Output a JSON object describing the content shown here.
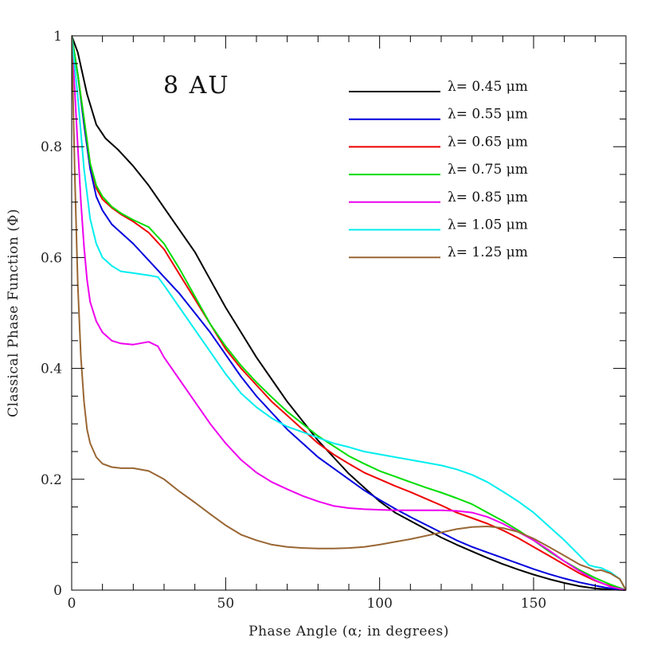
{
  "chart_data": {
    "type": "line",
    "title": "",
    "annotation": "8 AU",
    "xlabel": "Phase Angle (α; in degrees)",
    "ylabel": "Classical Phase Function (Φ)",
    "xlim": [
      0,
      180
    ],
    "ylim": [
      0,
      1
    ],
    "x_ticks": [
      0,
      50,
      100,
      150
    ],
    "x_tick_labels": [
      "0",
      "50",
      "100",
      "150"
    ],
    "y_ticks": [
      0,
      0.2,
      0.4,
      0.6,
      0.8,
      1
    ],
    "y_tick_labels": [
      "0",
      "0.2",
      "0.4",
      "0.6",
      "0.8",
      "1"
    ],
    "grid": false,
    "legend_position": "top-right",
    "series": [
      {
        "name": "λ= 0.45 μm",
        "color": "#000000",
        "points": [
          [
            0,
            1
          ],
          [
            2,
            0.97
          ],
          [
            5,
            0.895
          ],
          [
            8,
            0.84
          ],
          [
            11,
            0.815
          ],
          [
            15,
            0.795
          ],
          [
            20,
            0.765
          ],
          [
            25,
            0.73
          ],
          [
            30,
            0.69
          ],
          [
            35,
            0.65
          ],
          [
            40,
            0.61
          ],
          [
            45,
            0.56
          ],
          [
            50,
            0.51
          ],
          [
            55,
            0.465
          ],
          [
            60,
            0.42
          ],
          [
            65,
            0.38
          ],
          [
            70,
            0.34
          ],
          [
            75,
            0.305
          ],
          [
            80,
            0.27
          ],
          [
            85,
            0.24
          ],
          [
            90,
            0.21
          ],
          [
            95,
            0.185
          ],
          [
            100,
            0.16
          ],
          [
            105,
            0.14
          ],
          [
            110,
            0.125
          ],
          [
            115,
            0.11
          ],
          [
            120,
            0.095
          ],
          [
            125,
            0.082
          ],
          [
            130,
            0.07
          ],
          [
            135,
            0.058
          ],
          [
            140,
            0.047
          ],
          [
            145,
            0.037
          ],
          [
            150,
            0.028
          ],
          [
            155,
            0.02
          ],
          [
            160,
            0.013
          ],
          [
            165,
            0.007
          ],
          [
            170,
            0.003
          ],
          [
            175,
            0.001
          ],
          [
            180,
            0
          ]
        ]
      },
      {
        "name": "λ= 0.55 μm",
        "color": "#0000dd",
        "points": [
          [
            0,
            1
          ],
          [
            2,
            0.93
          ],
          [
            4,
            0.84
          ],
          [
            6,
            0.76
          ],
          [
            8,
            0.71
          ],
          [
            10,
            0.685
          ],
          [
            13,
            0.66
          ],
          [
            16,
            0.645
          ],
          [
            20,
            0.625
          ],
          [
            25,
            0.595
          ],
          [
            30,
            0.565
          ],
          [
            35,
            0.535
          ],
          [
            40,
            0.5
          ],
          [
            45,
            0.465
          ],
          [
            50,
            0.425
          ],
          [
            55,
            0.385
          ],
          [
            60,
            0.35
          ],
          [
            65,
            0.32
          ],
          [
            70,
            0.29
          ],
          [
            75,
            0.265
          ],
          [
            80,
            0.24
          ],
          [
            85,
            0.22
          ],
          [
            90,
            0.2
          ],
          [
            95,
            0.18
          ],
          [
            100,
            0.163
          ],
          [
            105,
            0.147
          ],
          [
            110,
            0.132
          ],
          [
            115,
            0.118
          ],
          [
            120,
            0.104
          ],
          [
            125,
            0.09
          ],
          [
            130,
            0.078
          ],
          [
            135,
            0.068
          ],
          [
            140,
            0.058
          ],
          [
            145,
            0.048
          ],
          [
            150,
            0.038
          ],
          [
            155,
            0.029
          ],
          [
            160,
            0.021
          ],
          [
            165,
            0.014
          ],
          [
            170,
            0.008
          ],
          [
            175,
            0.003
          ],
          [
            180,
            0
          ]
        ]
      },
      {
        "name": "λ= 0.65 μm",
        "color": "#ee0000",
        "points": [
          [
            0,
            1
          ],
          [
            2,
            0.93
          ],
          [
            4,
            0.85
          ],
          [
            6,
            0.77
          ],
          [
            8,
            0.725
          ],
          [
            10,
            0.705
          ],
          [
            13,
            0.69
          ],
          [
            16,
            0.678
          ],
          [
            20,
            0.665
          ],
          [
            25,
            0.645
          ],
          [
            30,
            0.615
          ],
          [
            35,
            0.57
          ],
          [
            40,
            0.525
          ],
          [
            45,
            0.48
          ],
          [
            50,
            0.435
          ],
          [
            55,
            0.4
          ],
          [
            60,
            0.37
          ],
          [
            65,
            0.34
          ],
          [
            70,
            0.315
          ],
          [
            75,
            0.29
          ],
          [
            80,
            0.265
          ],
          [
            85,
            0.245
          ],
          [
            90,
            0.228
          ],
          [
            95,
            0.212
          ],
          [
            100,
            0.2
          ],
          [
            105,
            0.188
          ],
          [
            110,
            0.177
          ],
          [
            115,
            0.165
          ],
          [
            120,
            0.153
          ],
          [
            125,
            0.14
          ],
          [
            130,
            0.13
          ],
          [
            135,
            0.12
          ],
          [
            140,
            0.108
          ],
          [
            145,
            0.094
          ],
          [
            150,
            0.078
          ],
          [
            155,
            0.062
          ],
          [
            160,
            0.046
          ],
          [
            165,
            0.03
          ],
          [
            170,
            0.017
          ],
          [
            175,
            0.007
          ],
          [
            180,
            0
          ]
        ]
      },
      {
        "name": "λ= 0.75 μm",
        "color": "#00dd00",
        "points": [
          [
            0,
            1
          ],
          [
            2,
            0.93
          ],
          [
            4,
            0.85
          ],
          [
            6,
            0.77
          ],
          [
            8,
            0.73
          ],
          [
            10,
            0.71
          ],
          [
            13,
            0.692
          ],
          [
            16,
            0.68
          ],
          [
            20,
            0.668
          ],
          [
            25,
            0.655
          ],
          [
            30,
            0.625
          ],
          [
            35,
            0.58
          ],
          [
            40,
            0.53
          ],
          [
            45,
            0.48
          ],
          [
            50,
            0.44
          ],
          [
            55,
            0.405
          ],
          [
            60,
            0.375
          ],
          [
            65,
            0.348
          ],
          [
            70,
            0.322
          ],
          [
            75,
            0.3
          ],
          [
            80,
            0.278
          ],
          [
            85,
            0.26
          ],
          [
            90,
            0.242
          ],
          [
            95,
            0.228
          ],
          [
            100,
            0.215
          ],
          [
            105,
            0.205
          ],
          [
            110,
            0.195
          ],
          [
            115,
            0.185
          ],
          [
            120,
            0.176
          ],
          [
            125,
            0.166
          ],
          [
            130,
            0.155
          ],
          [
            135,
            0.14
          ],
          [
            140,
            0.125
          ],
          [
            145,
            0.108
          ],
          [
            150,
            0.09
          ],
          [
            155,
            0.07
          ],
          [
            160,
            0.052
          ],
          [
            165,
            0.036
          ],
          [
            170,
            0.022
          ],
          [
            175,
            0.01
          ],
          [
            180,
            0
          ]
        ]
      },
      {
        "name": "λ= 0.85 μm",
        "color": "#ee00ee",
        "points": [
          [
            0,
            1
          ],
          [
            1,
            0.9
          ],
          [
            2,
            0.8
          ],
          [
            3,
            0.7
          ],
          [
            4,
            0.62
          ],
          [
            5,
            0.56
          ],
          [
            6,
            0.52
          ],
          [
            8,
            0.485
          ],
          [
            10,
            0.465
          ],
          [
            13,
            0.45
          ],
          [
            16,
            0.445
          ],
          [
            20,
            0.443
          ],
          [
            25,
            0.448
          ],
          [
            28,
            0.44
          ],
          [
            30,
            0.42
          ],
          [
            35,
            0.38
          ],
          [
            40,
            0.34
          ],
          [
            45,
            0.3
          ],
          [
            50,
            0.265
          ],
          [
            55,
            0.235
          ],
          [
            60,
            0.212
          ],
          [
            65,
            0.195
          ],
          [
            70,
            0.182
          ],
          [
            75,
            0.17
          ],
          [
            80,
            0.16
          ],
          [
            85,
            0.152
          ],
          [
            90,
            0.148
          ],
          [
            95,
            0.146
          ],
          [
            100,
            0.145
          ],
          [
            105,
            0.144
          ],
          [
            110,
            0.144
          ],
          [
            115,
            0.144
          ],
          [
            120,
            0.144
          ],
          [
            125,
            0.143
          ],
          [
            130,
            0.14
          ],
          [
            135,
            0.132
          ],
          [
            140,
            0.12
          ],
          [
            145,
            0.105
          ],
          [
            150,
            0.09
          ],
          [
            155,
            0.072
          ],
          [
            160,
            0.052
          ],
          [
            165,
            0.034
          ],
          [
            170,
            0.018
          ],
          [
            175,
            0.006
          ],
          [
            180,
            0
          ]
        ]
      },
      {
        "name": "λ= 1.05 μm",
        "color": "#00eeee",
        "points": [
          [
            0,
            1
          ],
          [
            2,
            0.89
          ],
          [
            4,
            0.76
          ],
          [
            6,
            0.67
          ],
          [
            8,
            0.625
          ],
          [
            10,
            0.6
          ],
          [
            13,
            0.585
          ],
          [
            16,
            0.575
          ],
          [
            20,
            0.572
          ],
          [
            25,
            0.568
          ],
          [
            28,
            0.565
          ],
          [
            30,
            0.55
          ],
          [
            35,
            0.51
          ],
          [
            40,
            0.47
          ],
          [
            45,
            0.43
          ],
          [
            50,
            0.39
          ],
          [
            55,
            0.355
          ],
          [
            60,
            0.33
          ],
          [
            65,
            0.31
          ],
          [
            70,
            0.295
          ],
          [
            75,
            0.285
          ],
          [
            80,
            0.275
          ],
          [
            85,
            0.265
          ],
          [
            90,
            0.258
          ],
          [
            95,
            0.25
          ],
          [
            100,
            0.245
          ],
          [
            105,
            0.24
          ],
          [
            110,
            0.235
          ],
          [
            115,
            0.23
          ],
          [
            120,
            0.225
          ],
          [
            125,
            0.218
          ],
          [
            130,
            0.208
          ],
          [
            135,
            0.195
          ],
          [
            140,
            0.178
          ],
          [
            145,
            0.16
          ],
          [
            150,
            0.14
          ],
          [
            155,
            0.115
          ],
          [
            160,
            0.09
          ],
          [
            165,
            0.062
          ],
          [
            168,
            0.045
          ],
          [
            170,
            0.042
          ],
          [
            172,
            0.04
          ],
          [
            175,
            0.032
          ],
          [
            178,
            0.02
          ],
          [
            180,
            0
          ]
        ]
      },
      {
        "name": "λ= 1.25 μm",
        "color": "#996633",
        "points": [
          [
            0,
            1
          ],
          [
            1,
            0.75
          ],
          [
            2,
            0.55
          ],
          [
            3,
            0.42
          ],
          [
            4,
            0.34
          ],
          [
            5,
            0.29
          ],
          [
            6,
            0.265
          ],
          [
            8,
            0.24
          ],
          [
            10,
            0.228
          ],
          [
            13,
            0.222
          ],
          [
            16,
            0.22
          ],
          [
            20,
            0.22
          ],
          [
            25,
            0.215
          ],
          [
            30,
            0.2
          ],
          [
            35,
            0.178
          ],
          [
            40,
            0.158
          ],
          [
            45,
            0.137
          ],
          [
            50,
            0.117
          ],
          [
            55,
            0.1
          ],
          [
            60,
            0.09
          ],
          [
            65,
            0.082
          ],
          [
            70,
            0.078
          ],
          [
            75,
            0.076
          ],
          [
            80,
            0.075
          ],
          [
            85,
            0.075
          ],
          [
            90,
            0.076
          ],
          [
            95,
            0.078
          ],
          [
            100,
            0.082
          ],
          [
            105,
            0.087
          ],
          [
            110,
            0.092
          ],
          [
            115,
            0.098
          ],
          [
            120,
            0.104
          ],
          [
            125,
            0.11
          ],
          [
            130,
            0.114
          ],
          [
            135,
            0.115
          ],
          [
            140,
            0.112
          ],
          [
            145,
            0.105
          ],
          [
            150,
            0.093
          ],
          [
            155,
            0.078
          ],
          [
            160,
            0.062
          ],
          [
            165,
            0.046
          ],
          [
            168,
            0.04
          ],
          [
            170,
            0.035
          ],
          [
            172,
            0.036
          ],
          [
            175,
            0.03
          ],
          [
            178,
            0.02
          ],
          [
            180,
            0
          ]
        ]
      }
    ]
  }
}
